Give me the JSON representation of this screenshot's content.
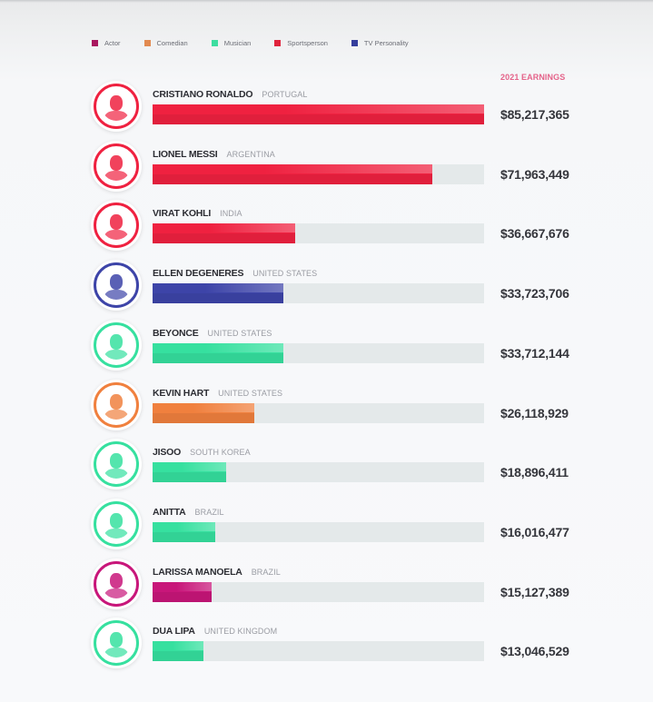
{
  "legend": [
    {
      "label": "Actor",
      "color": "#a8175f"
    },
    {
      "label": "Comedian",
      "color": "#e28a50"
    },
    {
      "label": "Musician",
      "color": "#3ddda0"
    },
    {
      "label": "Sportsperson",
      "color": "#e0233c"
    },
    {
      "label": "TV Personality",
      "color": "#353e9c"
    }
  ],
  "header": {
    "earnings_label": "2021 EARNINGS"
  },
  "rows": [
    {
      "name": "CRISTIANO RONALDO",
      "country": "PORTUGAL",
      "category": "Sportsperson",
      "amount": "$85,217,365",
      "value": 85217365,
      "color": "#ef2140",
      "icon": "person-portrait-icon"
    },
    {
      "name": "LIONEL MESSI",
      "country": "ARGENTINA",
      "category": "Sportsperson",
      "amount": "$71,963,449",
      "value": 71963449,
      "color": "#ef2140",
      "icon": "person-portrait-icon"
    },
    {
      "name": "VIRAT KOHLI",
      "country": "INDIA",
      "category": "Sportsperson",
      "amount": "$36,667,676",
      "value": 36667676,
      "color": "#ef2140",
      "icon": "person-portrait-icon"
    },
    {
      "name": "ELLEN DEGENERES",
      "country": "UNITED STATES",
      "category": "TV Personality",
      "amount": "$33,723,706",
      "value": 33723706,
      "color": "#3d44a8",
      "icon": "person-portrait-icon"
    },
    {
      "name": "BEYONCE",
      "country": "UNITED STATES",
      "category": "Musician",
      "amount": "$33,712,144",
      "value": 33712144,
      "color": "#36e09f",
      "icon": "person-portrait-icon"
    },
    {
      "name": "KEVIN HART",
      "country": "UNITED STATES",
      "category": "Comedian",
      "amount": "$26,118,929",
      "value": 26118929,
      "color": "#f0803e",
      "icon": "person-portrait-icon"
    },
    {
      "name": "JISOO",
      "country": "SOUTH KOREA",
      "category": "Musician",
      "amount": "$18,896,411",
      "value": 18896411,
      "color": "#36e09f",
      "icon": "person-portrait-icon"
    },
    {
      "name": "ANITTA",
      "country": "BRAZIL",
      "category": "Musician",
      "amount": "$16,016,477",
      "value": 16016477,
      "color": "#36e09f",
      "icon": "person-portrait-icon"
    },
    {
      "name": "LARISSA MANOELA",
      "country": "BRAZIL",
      "category": "Actor",
      "amount": "$15,127,389",
      "value": 15127389,
      "color": "#c8167a",
      "icon": "person-portrait-icon"
    },
    {
      "name": "DUA LIPA",
      "country": "UNITED KINGDOM",
      "category": "Musician",
      "amount": "$13,046,529",
      "value": 13046529,
      "color": "#36e09f",
      "icon": "person-portrait-icon"
    }
  ],
  "chart_data": {
    "type": "bar",
    "orientation": "horizontal",
    "title": "",
    "value_header": "2021 EARNINGS",
    "xlabel": "",
    "ylabel": "",
    "categories": [
      "Cristiano Ronaldo",
      "Lionel Messi",
      "Virat Kohli",
      "Ellen DeGeneres",
      "Beyonce",
      "Kevin Hart",
      "Jisoo",
      "Anitta",
      "Larissa Manoela",
      "Dua Lipa"
    ],
    "countries": [
      "Portugal",
      "Argentina",
      "India",
      "United States",
      "United States",
      "United States",
      "South Korea",
      "Brazil",
      "Brazil",
      "United Kingdom"
    ],
    "groups": [
      "Sportsperson",
      "Sportsperson",
      "Sportsperson",
      "TV Personality",
      "Musician",
      "Comedian",
      "Musician",
      "Musician",
      "Actor",
      "Musician"
    ],
    "values": [
      85217365,
      71963449,
      36667676,
      33723706,
      33712144,
      26118929,
      18896411,
      16016477,
      15127389,
      13046529
    ],
    "legend": [
      "Actor",
      "Comedian",
      "Musician",
      "Sportsperson",
      "TV Personality"
    ],
    "legend_position": "top",
    "xlim": [
      0,
      85217365
    ],
    "grid": false
  }
}
